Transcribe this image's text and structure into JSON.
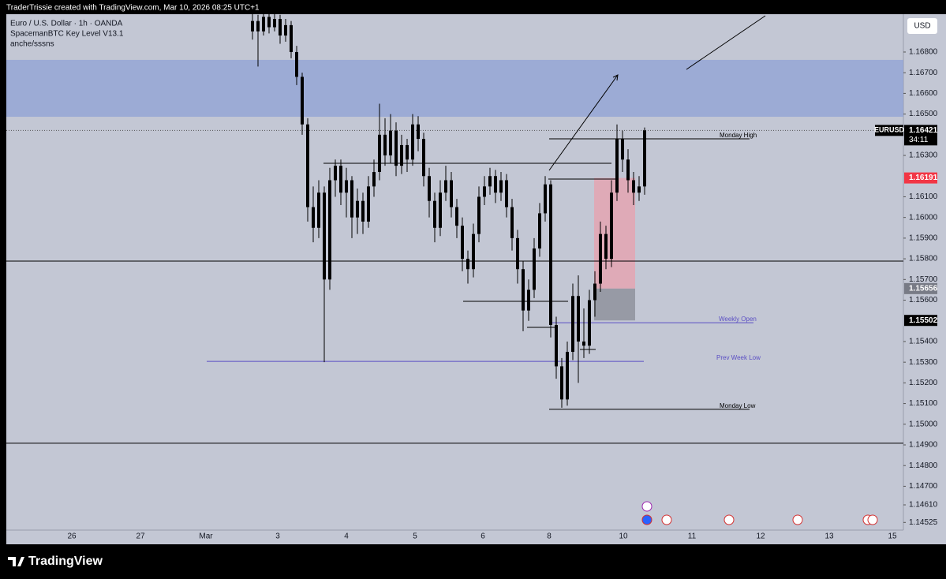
{
  "chart_data": {
    "type": "candlestick",
    "credit": "TraderTrissie created with TradingView.com, Mar 10, 2026 08:25 UTC+1",
    "title": "Euro / U.S. Dollar · 1h · OANDA",
    "indicators": [
      "SpacemanBTC Key Level V13.1",
      "anche/sssns"
    ],
    "currency": "USD",
    "brand": "TradingView",
    "symbol": "EURUSD",
    "last_price": 1.16421,
    "countdown": "34:11",
    "ylim": [
      1.14488,
      1.16983
    ],
    "yticks": [
      {
        "value": 1.168,
        "label": "1.16800"
      },
      {
        "value": 1.167,
        "label": "1.16700"
      },
      {
        "value": 1.166,
        "label": "1.16600"
      },
      {
        "value": 1.165,
        "label": "1.16500"
      },
      {
        "value": 1.163,
        "label": "1.16300"
      },
      {
        "value": 1.161,
        "label": "1.16100"
      },
      {
        "value": 1.16,
        "label": "1.16000"
      },
      {
        "value": 1.159,
        "label": "1.15900"
      },
      {
        "value": 1.158,
        "label": "1.15800"
      },
      {
        "value": 1.157,
        "label": "1.15700"
      },
      {
        "value": 1.156,
        "label": "1.15600"
      },
      {
        "value": 1.154,
        "label": "1.15400"
      },
      {
        "value": 1.153,
        "label": "1.15300"
      },
      {
        "value": 1.152,
        "label": "1.15200"
      },
      {
        "value": 1.151,
        "label": "1.15100"
      },
      {
        "value": 1.15,
        "label": "1.15000"
      },
      {
        "value": 1.149,
        "label": "1.14900"
      },
      {
        "value": 1.148,
        "label": "1.14800"
      },
      {
        "value": 1.147,
        "label": "1.14700"
      },
      {
        "value": 1.1461,
        "label": "1.14610"
      },
      1.14525
    ],
    "xlabels": [
      "26",
      "27",
      "Mar",
      "3",
      "4",
      "5",
      "6",
      "8",
      "10",
      "11",
      "12",
      "13",
      "15"
    ],
    "zone": [
      1.16487,
      1.16762
    ],
    "lines": [
      1.15789,
      1.14908
    ],
    "levels": [
      {
        "name": "Monday High",
        "value": 1.1638
      },
      {
        "name": "Weekly Open",
        "value": 1.15491
      },
      {
        "name": "Prev Week Low",
        "value": 1.15304
      },
      {
        "name": "Monday Low",
        "value": 1.15072
      }
    ],
    "position": {
      "target": 1.16191,
      "entry": 1.15656,
      "stop": 1.15502
    },
    "color": "#000000",
    "ohlc": [
      [
        1.169,
        1.1699,
        1.1686,
        1.1695
      ],
      [
        1.1695,
        1.1698,
        1.1673,
        1.169
      ],
      [
        1.169,
        1.17,
        1.1688,
        1.1697
      ],
      [
        1.1697,
        1.1699,
        1.1689,
        1.1692
      ],
      [
        1.1692,
        1.1699,
        1.169,
        1.1696
      ],
      [
        1.1696,
        1.1698,
        1.1684,
        1.1688
      ],
      [
        1.1688,
        1.1696,
        1.1685,
        1.1693
      ],
      [
        1.1693,
        1.1695,
        1.1677,
        1.168
      ],
      [
        1.168,
        1.1683,
        1.1664,
        1.1668
      ],
      [
        1.1668,
        1.167,
        1.164,
        1.1645
      ],
      [
        1.1645,
        1.1648,
        1.1598,
        1.1605
      ],
      [
        1.1605,
        1.1615,
        1.1588,
        1.1595
      ],
      [
        1.1595,
        1.1618,
        1.159,
        1.1612
      ],
      [
        1.1612,
        1.1615,
        1.153,
        1.157
      ],
      [
        1.157,
        1.1624,
        1.1565,
        1.1618
      ],
      [
        1.1618,
        1.1628,
        1.161,
        1.1625
      ],
      [
        1.1625,
        1.1628,
        1.1606,
        1.1612
      ],
      [
        1.1612,
        1.1624,
        1.16,
        1.1618
      ],
      [
        1.1618,
        1.162,
        1.159,
        1.16
      ],
      [
        1.16,
        1.1614,
        1.1592,
        1.1608
      ],
      [
        1.1608,
        1.1612,
        1.1592,
        1.1598
      ],
      [
        1.1598,
        1.162,
        1.1595,
        1.1615
      ],
      [
        1.1615,
        1.1628,
        1.161,
        1.1622
      ],
      [
        1.1622,
        1.1655,
        1.1618,
        1.164
      ],
      [
        1.164,
        1.1648,
        1.1625,
        1.163
      ],
      [
        1.163,
        1.165,
        1.1626,
        1.1642
      ],
      [
        1.1642,
        1.1646,
        1.162,
        1.1625
      ],
      [
        1.1625,
        1.164,
        1.1621,
        1.1635
      ],
      [
        1.1635,
        1.1638,
        1.1622,
        1.1628
      ],
      [
        1.1628,
        1.165,
        1.1625,
        1.1645
      ],
      [
        1.1645,
        1.1649,
        1.1632,
        1.1638
      ],
      [
        1.1638,
        1.1641,
        1.1615,
        1.162
      ],
      [
        1.162,
        1.1624,
        1.16,
        1.1608
      ],
      [
        1.1608,
        1.1612,
        1.1588,
        1.1595
      ],
      [
        1.1595,
        1.1618,
        1.1591,
        1.1612
      ],
      [
        1.1612,
        1.1625,
        1.1608,
        1.1618
      ],
      [
        1.1618,
        1.1622,
        1.16,
        1.1605
      ],
      [
        1.1605,
        1.1609,
        1.159,
        1.1596
      ],
      [
        1.1596,
        1.16,
        1.1574,
        1.158
      ],
      [
        1.158,
        1.1584,
        1.1568,
        1.1575
      ],
      [
        1.1575,
        1.1597,
        1.1571,
        1.1592
      ],
      [
        1.1592,
        1.1615,
        1.1588,
        1.161
      ],
      [
        1.161,
        1.162,
        1.1606,
        1.1615
      ],
      [
        1.1615,
        1.1624,
        1.1611,
        1.162
      ],
      [
        1.162,
        1.1623,
        1.1607,
        1.1612
      ],
      [
        1.1612,
        1.1622,
        1.1608,
        1.1618
      ],
      [
        1.1618,
        1.1621,
        1.16,
        1.1605
      ],
      [
        1.1605,
        1.1609,
        1.1584,
        1.159
      ],
      [
        1.159,
        1.1594,
        1.1568,
        1.1575
      ],
      [
        1.1575,
        1.1579,
        1.1545,
        1.1555
      ],
      [
        1.1555,
        1.157,
        1.155,
        1.1565
      ],
      [
        1.1565,
        1.159,
        1.1561,
        1.1585
      ],
      [
        1.1585,
        1.1607,
        1.1581,
        1.1602
      ],
      [
        1.1602,
        1.162,
        1.1598,
        1.1616
      ],
      [
        1.1616,
        1.1618,
        1.1542,
        1.1548
      ],
      [
        1.1548,
        1.1552,
        1.1522,
        1.1528
      ],
      [
        1.1528,
        1.1532,
        1.1508,
        1.1512
      ],
      [
        1.1512,
        1.154,
        1.1509,
        1.1535
      ],
      [
        1.1535,
        1.1568,
        1.1531,
        1.1562
      ],
      [
        1.1562,
        1.1572,
        1.152,
        1.154
      ],
      [
        1.154,
        1.1556,
        1.1532,
        1.1538
      ],
      [
        1.1538,
        1.1565,
        1.1534,
        1.156
      ],
      [
        1.156,
        1.1574,
        1.1552,
        1.1568
      ],
      [
        1.1568,
        1.1598,
        1.1564,
        1.1592
      ],
      [
        1.1592,
        1.1596,
        1.1575,
        1.158
      ],
      [
        1.158,
        1.1618,
        1.1576,
        1.1612
      ],
      [
        1.1612,
        1.1645,
        1.1608,
        1.1638
      ],
      [
        1.1638,
        1.1642,
        1.1622,
        1.1628
      ],
      [
        1.1628,
        1.1633,
        1.1612,
        1.1618
      ],
      [
        1.1618,
        1.1622,
        1.1606,
        1.1612
      ],
      [
        1.1612,
        1.162,
        1.1608,
        1.1615
      ],
      [
        1.1615,
        1.16435,
        1.1611,
        1.16421
      ]
    ]
  }
}
